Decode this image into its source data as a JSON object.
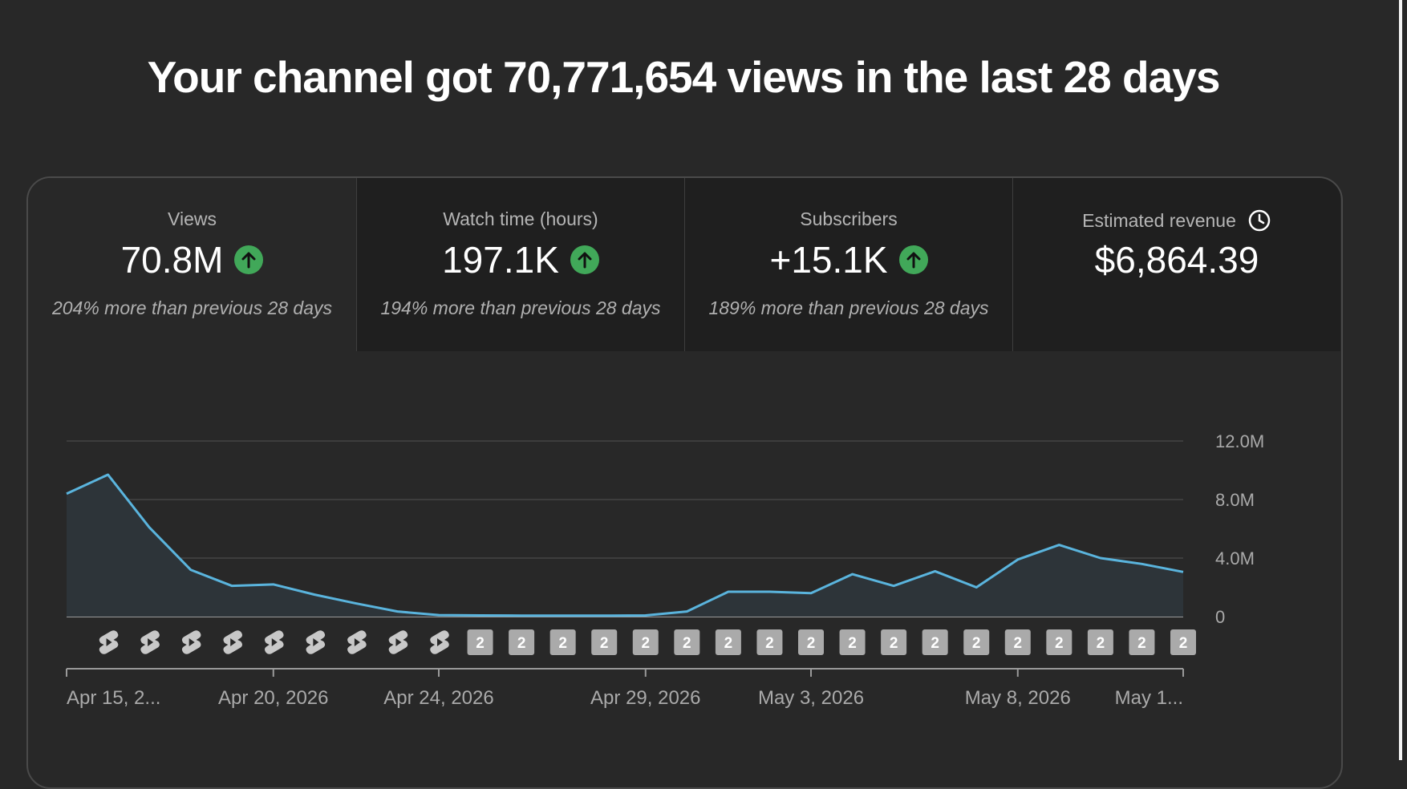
{
  "headline": "Your channel got 70,771,654 views in the last 28 days",
  "metrics": [
    {
      "label": "Views",
      "value": "70.8M",
      "trend": "up",
      "sub": "204% more than previous 28 days",
      "selected": true
    },
    {
      "label": "Watch time (hours)",
      "value": "197.1K",
      "trend": "up",
      "sub": "194% more than previous 28 days",
      "selected": false
    },
    {
      "label": "Subscribers",
      "value": "+15.1K",
      "trend": "up",
      "sub": "189% more than previous 28 days",
      "selected": false
    },
    {
      "label": "Estimated revenue",
      "value": "$6,864.39",
      "trend": "",
      "sub": "",
      "selected": false,
      "icon": "clock-icon"
    }
  ],
  "colors": {
    "background": "#282828",
    "line": "#5ab4dd",
    "area": "#2d3439",
    "up_badge": "#41a859",
    "badge": "#aaaaaa"
  },
  "chart_data": {
    "type": "area",
    "x": [
      "Apr 15, 2026",
      "Apr 16, 2026",
      "Apr 17, 2026",
      "Apr 18, 2026",
      "Apr 19, 2026",
      "Apr 20, 2026",
      "Apr 21, 2026",
      "Apr 22, 2026",
      "Apr 23, 2026",
      "Apr 24, 2026",
      "Apr 25, 2026",
      "Apr 26, 2026",
      "Apr 27, 2026",
      "Apr 28, 2026",
      "Apr 29, 2026",
      "Apr 30, 2026",
      "May 1, 2026",
      "May 2, 2026",
      "May 3, 2026",
      "May 4, 2026",
      "May 5, 2026",
      "May 6, 2026",
      "May 7, 2026",
      "May 8, 2026",
      "May 9, 2026",
      "May 10, 2026",
      "May 11, 2026",
      "May 12, 2026"
    ],
    "values": [
      8.4,
      9.7,
      6.1,
      3.2,
      2.1,
      2.2,
      1.5,
      0.9,
      0.35,
      0.1,
      0.08,
      0.07,
      0.07,
      0.07,
      0.08,
      0.35,
      1.7,
      1.7,
      1.6,
      2.9,
      2.1,
      3.1,
      2.0,
      3.9,
      4.9,
      4.0,
      3.6,
      3.05
    ],
    "ylim": [
      0,
      12
    ],
    "yticks": [
      "12.0M",
      "8.0M",
      "4.0M",
      "0"
    ],
    "ytick_values": [
      12,
      8,
      4,
      0
    ],
    "xtick_labels": [
      "Apr 15, 2...",
      "Apr 20, 2026",
      "Apr 24, 2026",
      "Apr 29, 2026",
      "May 3, 2026",
      "May 8, 2026",
      "May 1..."
    ],
    "xtick_indices": [
      0,
      5,
      9,
      14,
      18,
      23,
      27
    ],
    "markers": [
      {
        "index": 1,
        "type": "shorts-icon"
      },
      {
        "index": 2,
        "type": "shorts-icon"
      },
      {
        "index": 3,
        "type": "shorts-icon"
      },
      {
        "index": 4,
        "type": "shorts-icon"
      },
      {
        "index": 5,
        "type": "shorts-icon"
      },
      {
        "index": 6,
        "type": "shorts-icon"
      },
      {
        "index": 7,
        "type": "shorts-icon"
      },
      {
        "index": 8,
        "type": "shorts-icon"
      },
      {
        "index": 9,
        "type": "shorts-icon"
      },
      {
        "index": 10,
        "type": "count",
        "label": "2"
      },
      {
        "index": 11,
        "type": "count",
        "label": "2"
      },
      {
        "index": 12,
        "type": "count",
        "label": "2"
      },
      {
        "index": 13,
        "type": "count",
        "label": "2"
      },
      {
        "index": 14,
        "type": "count",
        "label": "2"
      },
      {
        "index": 15,
        "type": "count",
        "label": "2"
      },
      {
        "index": 16,
        "type": "count",
        "label": "2"
      },
      {
        "index": 17,
        "type": "count",
        "label": "2"
      },
      {
        "index": 18,
        "type": "count",
        "label": "2"
      },
      {
        "index": 19,
        "type": "count",
        "label": "2"
      },
      {
        "index": 20,
        "type": "count",
        "label": "2"
      },
      {
        "index": 21,
        "type": "count",
        "label": "2"
      },
      {
        "index": 22,
        "type": "count",
        "label": "2"
      },
      {
        "index": 23,
        "type": "count",
        "label": "2"
      },
      {
        "index": 24,
        "type": "count",
        "label": "2"
      },
      {
        "index": 25,
        "type": "count",
        "label": "2"
      },
      {
        "index": 26,
        "type": "count",
        "label": "2"
      },
      {
        "index": 27,
        "type": "count",
        "label": "2"
      }
    ],
    "grid": true
  }
}
